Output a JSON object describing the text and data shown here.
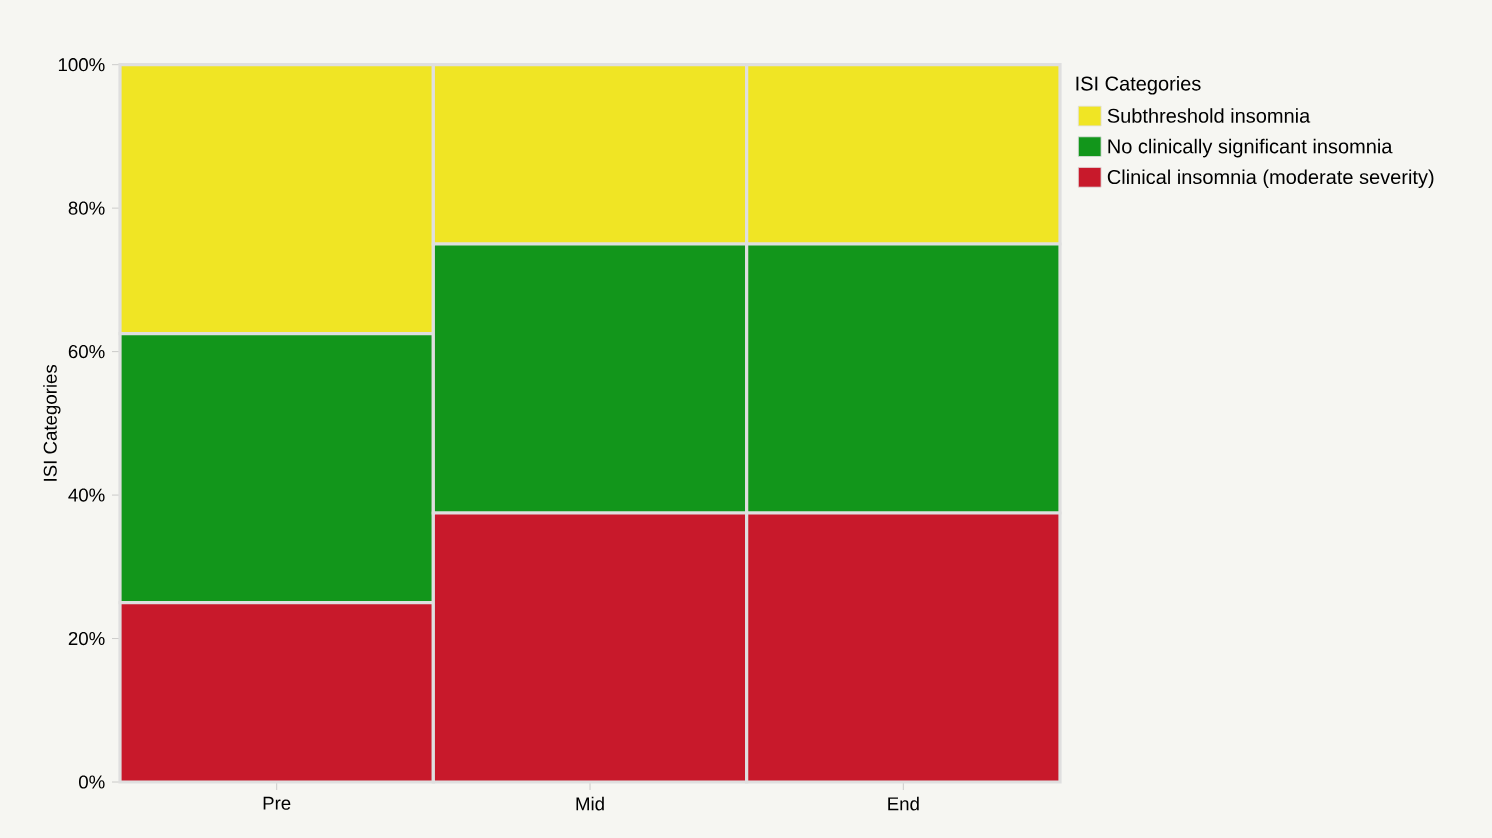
{
  "chart_data": {
    "type": "bar",
    "stacked": true,
    "ylabel": "ISI Categories",
    "legend_title": "ISI Categories",
    "legend": "right",
    "categories": [
      "Pre",
      "Mid",
      "End"
    ],
    "ylim": [
      0,
      100
    ],
    "yticks": [
      {
        "value": 0,
        "label": "0%"
      },
      {
        "value": 20,
        "label": "20%"
      },
      {
        "value": 40,
        "label": "40%"
      },
      {
        "value": 60,
        "label": "60%"
      },
      {
        "value": 80,
        "label": "80%"
      },
      {
        "value": 100,
        "label": "100%"
      }
    ],
    "series": [
      {
        "name": "Clinical insomnia (moderate severity)",
        "color": "#c8192b",
        "values": [
          25,
          37.5,
          37.5
        ]
      },
      {
        "name": "No clinically significant insomnia",
        "color": "#12961b",
        "values": [
          37.5,
          37.5,
          37.5
        ]
      },
      {
        "name": "Subthreshold insomnia",
        "color": "#f0e524",
        "values": [
          37.5,
          25,
          25
        ]
      }
    ]
  }
}
